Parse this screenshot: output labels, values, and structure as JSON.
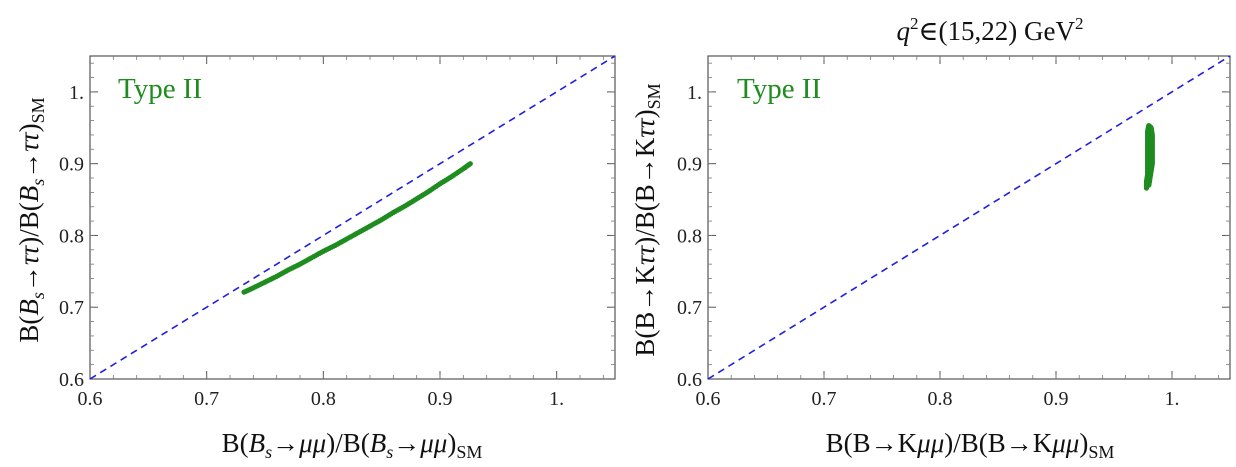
{
  "chart_data": [
    {
      "type": "scatter",
      "title": "",
      "xlabel": "B(Bs→μμ)/B(Bs→μμ)SM",
      "ylabel": "B(Bs→ττ)/B(Bs→ττ)SM",
      "xlim": [
        0.6,
        1.05
      ],
      "ylim": [
        0.6,
        1.05
      ],
      "xticks": [
        0.6,
        0.7,
        0.8,
        0.9,
        1.0
      ],
      "yticks": [
        0.6,
        0.7,
        0.8,
        0.9,
        1.0
      ],
      "tick_labels": [
        "0.6",
        "0.7",
        "0.8",
        "0.9",
        "1."
      ],
      "annotation": "Type II",
      "reference_line": {
        "x": [
          0.6,
          1.05
        ],
        "y": [
          0.6,
          1.05
        ],
        "color": "#1f1fdf",
        "style": "dashed"
      },
      "series": [
        {
          "color": "#1e8c1e",
          "points": [
            [
              0.732,
              0.721
            ],
            [
              0.74,
              0.727
            ],
            [
              0.75,
              0.735
            ],
            [
              0.76,
              0.743
            ],
            [
              0.77,
              0.752
            ],
            [
              0.78,
              0.76
            ],
            [
              0.79,
              0.769
            ],
            [
              0.8,
              0.778
            ],
            [
              0.81,
              0.786
            ],
            [
              0.82,
              0.795
            ],
            [
              0.83,
              0.804
            ],
            [
              0.84,
              0.813
            ],
            [
              0.85,
              0.822
            ],
            [
              0.86,
              0.832
            ],
            [
              0.87,
              0.841
            ],
            [
              0.88,
              0.851
            ],
            [
              0.89,
              0.861
            ],
            [
              0.9,
              0.872
            ],
            [
              0.91,
              0.882
            ],
            [
              0.92,
              0.893
            ],
            [
              0.926,
              0.9
            ]
          ]
        }
      ]
    },
    {
      "type": "scatter",
      "title": "q²∈(15,22) GeV²",
      "xlabel": "B(B→Kμμ)/B(B→Kμμ)SM",
      "ylabel": "B(B→Kττ)/B(B→Kττ)SM",
      "xlim": [
        0.6,
        1.05
      ],
      "ylim": [
        0.6,
        1.05
      ],
      "xticks": [
        0.6,
        0.7,
        0.8,
        0.9,
        1.0
      ],
      "yticks": [
        0.6,
        0.7,
        0.8,
        0.9,
        1.0
      ],
      "tick_labels": [
        "0.6",
        "0.7",
        "0.8",
        "0.9",
        "1."
      ],
      "annotation": "Type II",
      "reference_line": {
        "x": [
          0.6,
          1.05
        ],
        "y": [
          0.6,
          1.05
        ],
        "color": "#1f1fdf",
        "style": "dashed"
      },
      "series": [
        {
          "color": "#1e8c1e",
          "points": [
            [
              0.978,
              0.866
            ],
            [
              0.978,
              0.875
            ],
            [
              0.979,
              0.885
            ],
            [
              0.979,
              0.895
            ],
            [
              0.979,
              0.905
            ],
            [
              0.979,
              0.915
            ],
            [
              0.979,
              0.925
            ],
            [
              0.979,
              0.935
            ],
            [
              0.979,
              0.945
            ],
            [
              0.98,
              0.953
            ],
            [
              0.982,
              0.95
            ],
            [
              0.983,
              0.94
            ],
            [
              0.983,
              0.93
            ],
            [
              0.983,
              0.92
            ],
            [
              0.983,
              0.91
            ],
            [
              0.983,
              0.9
            ],
            [
              0.982,
              0.89
            ],
            [
              0.981,
              0.88
            ],
            [
              0.98,
              0.87
            ]
          ]
        }
      ]
    }
  ]
}
